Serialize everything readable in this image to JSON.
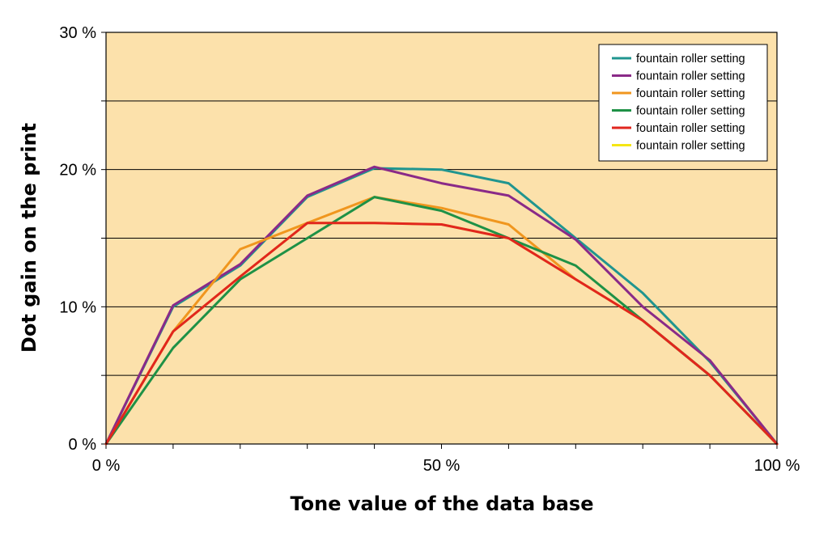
{
  "chart_data": {
    "type": "line",
    "title": "",
    "xlabel": "Tone value of the data base",
    "ylabel": "Dot gain on the print",
    "xlim": [
      0,
      100
    ],
    "ylim": [
      0,
      30
    ],
    "x_ticks": [
      0,
      50,
      100
    ],
    "x_tick_labels": [
      "0 %",
      "50 %",
      "100 %"
    ],
    "y_ticks": [
      0,
      10,
      20,
      30
    ],
    "y_tick_labels": [
      "0 %",
      "10 %",
      "20 %",
      "30 %"
    ],
    "grid": true,
    "gridlines_y": [
      5,
      10,
      15,
      20,
      25,
      30
    ],
    "legend_position": "top-right",
    "plot_background": "#fce1ab",
    "x": [
      0,
      10,
      20,
      30,
      40,
      50,
      60,
      70,
      80,
      90,
      100
    ],
    "series": [
      {
        "name": "fountain roller setting",
        "color": "#20958f",
        "values": [
          0,
          10,
          13,
          18,
          20.1,
          20,
          19,
          15,
          11,
          6,
          0
        ]
      },
      {
        "name": "fountain roller setting",
        "color": "#8a2a88",
        "values": [
          0,
          10.1,
          13.1,
          18.1,
          20.2,
          19,
          18.1,
          14.9,
          10,
          6.1,
          0
        ]
      },
      {
        "name": "fountain roller setting",
        "color": "#f0961e",
        "values": [
          0,
          8.2,
          14.2,
          16.1,
          18,
          17.2,
          16,
          12,
          9,
          5,
          0
        ]
      },
      {
        "name": "fountain roller setting",
        "color": "#1e9146",
        "values": [
          0,
          7,
          12,
          15,
          18,
          17,
          15,
          13,
          9,
          5,
          0
        ]
      },
      {
        "name": "fountain roller setting",
        "color": "#e1261e",
        "values": [
          0,
          8.2,
          12.2,
          16.1,
          16.1,
          16,
          15,
          12,
          9,
          5,
          0
        ]
      },
      {
        "name": "fountain roller setting",
        "color": "#f5e614",
        "values": [
          0,
          8.2,
          12.2,
          16.1,
          16.1,
          16,
          15,
          12,
          9,
          5,
          0
        ]
      }
    ]
  }
}
